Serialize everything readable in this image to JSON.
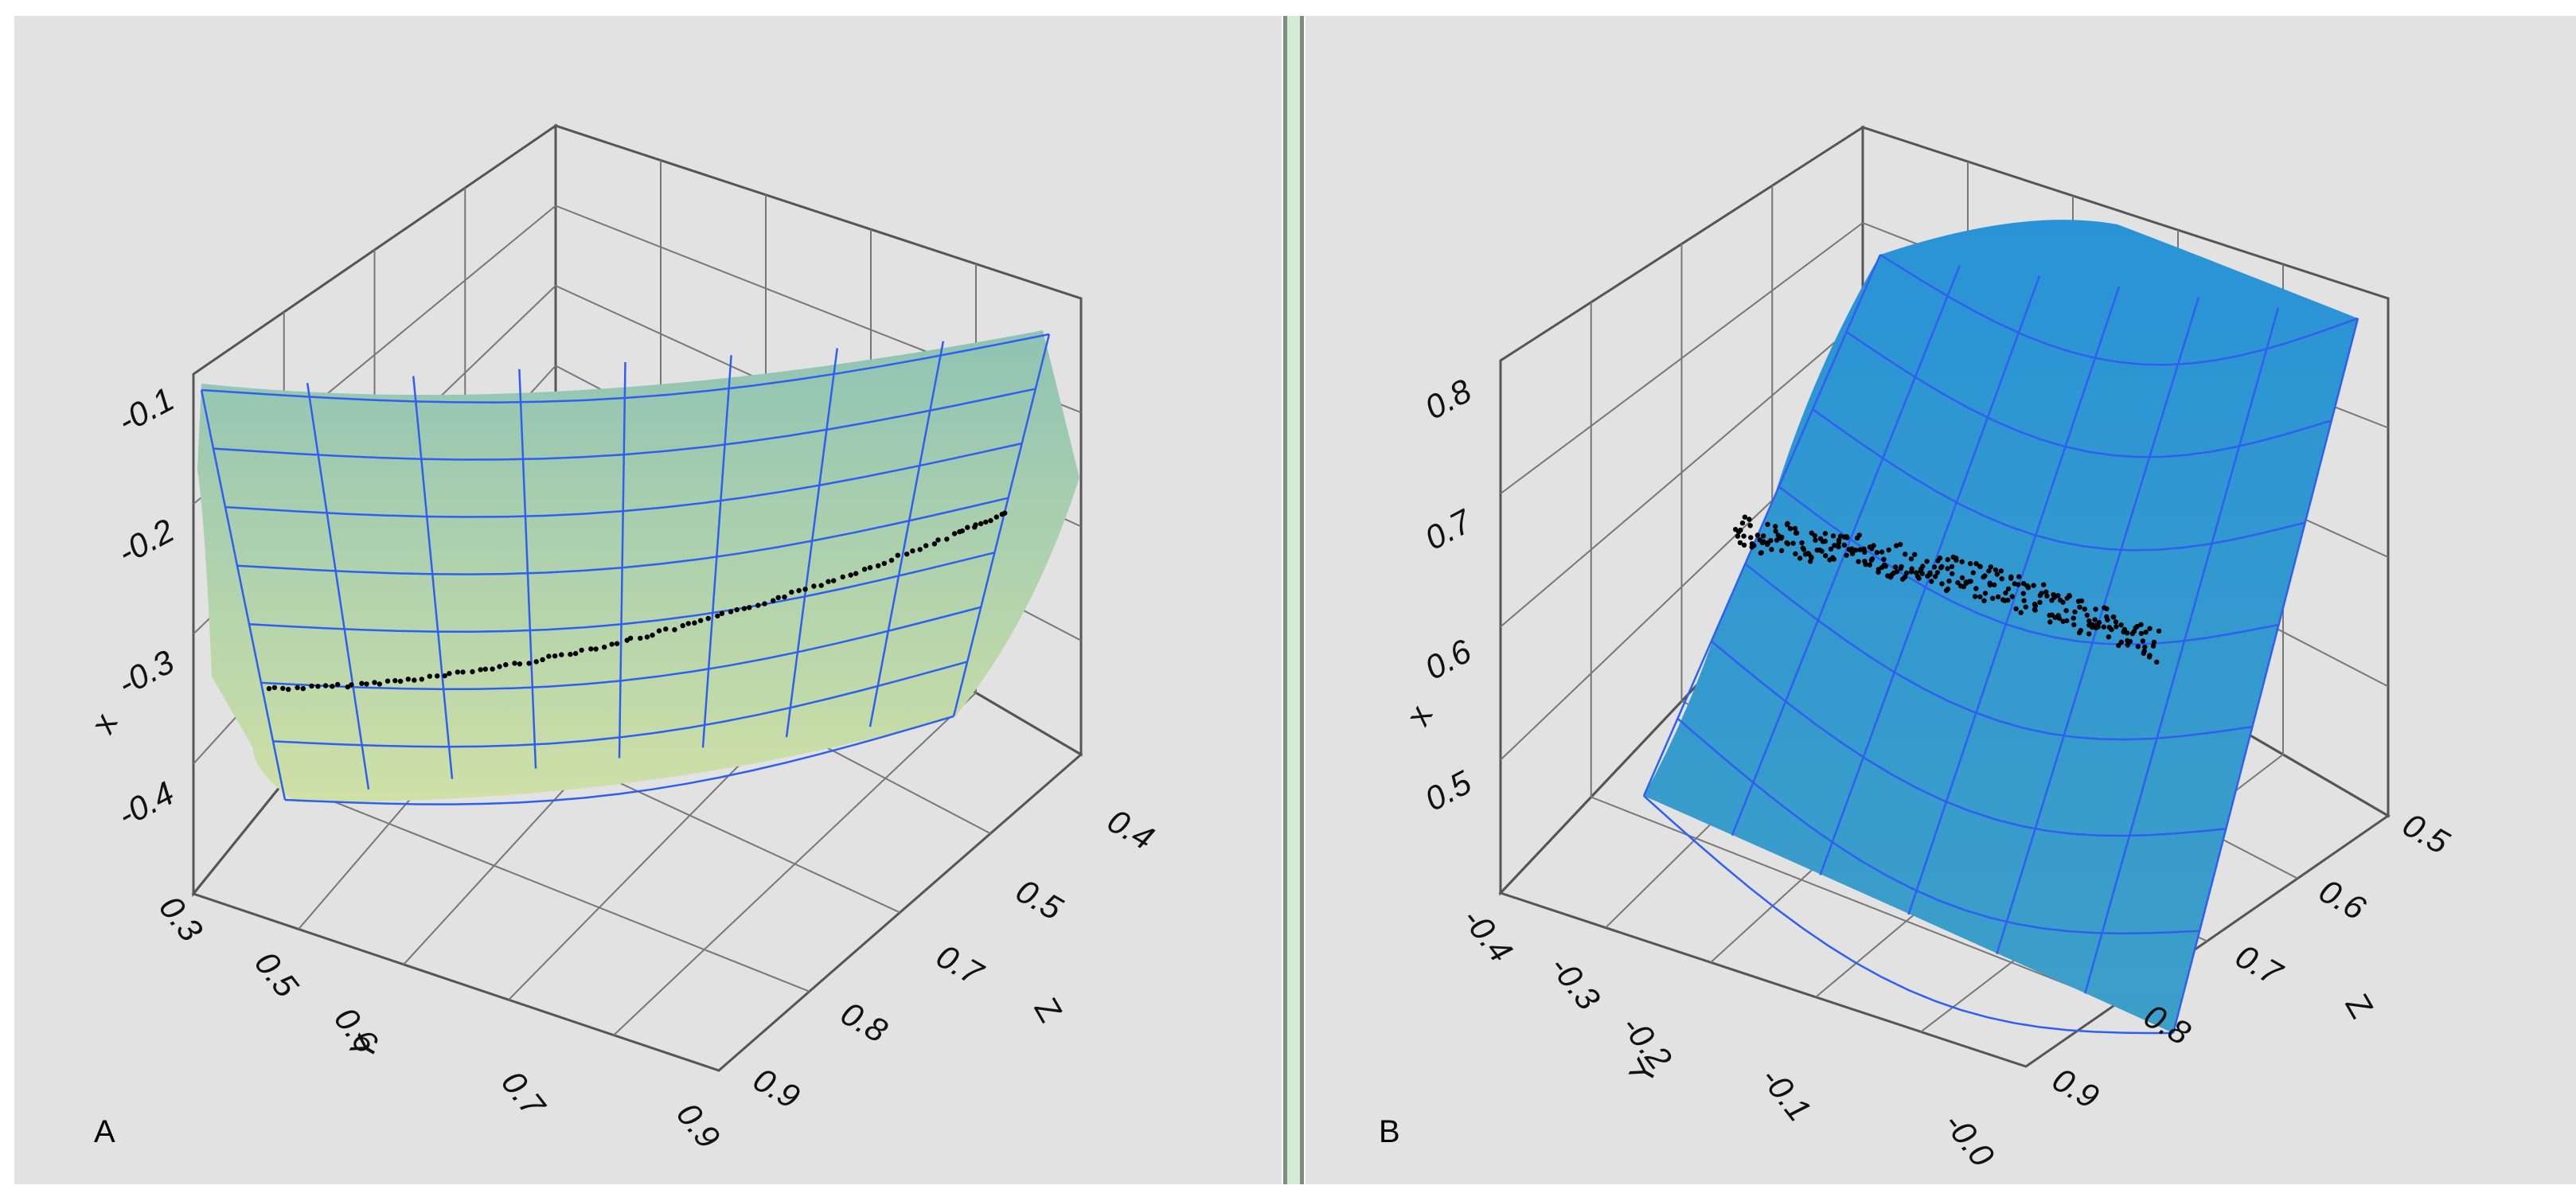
{
  "panels": [
    {
      "label": "A",
      "surface_color": "#8fc3b4",
      "surface_color_low": "#cfe0a6",
      "mesh_color": "#2f5ff0",
      "chart_data": {
        "type": "scatter",
        "title": "",
        "xlabel": "x",
        "ylabel": "Y",
        "zlabel": "Z",
        "x_axis": {
          "label": "x",
          "ticks": [
            "-0.1",
            "-0.2",
            "-0.3",
            "-0.4"
          ],
          "range": [
            -0.45,
            -0.08
          ]
        },
        "y_axis": {
          "label": "Y",
          "ticks": [
            "0.3",
            "0.5",
            "0.6",
            "0.7",
            "0.9"
          ]
        },
        "z_axis": {
          "label": "Z",
          "ticks": [
            "0.4",
            "0.5",
            "0.7",
            "0.8",
            "0.9"
          ]
        },
        "grid": true,
        "points_description": "black points along a curve on fitted surface",
        "series": [
          {
            "values_y": [
              0.32,
              0.38,
              0.44,
              0.5,
              0.56,
              0.62,
              0.68,
              0.74,
              0.8,
              0.86,
              0.9
            ],
            "values_x": [
              -0.32,
              -0.32,
              -0.315,
              -0.31,
              -0.305,
              -0.3,
              -0.29,
              -0.28,
              -0.26,
              -0.24,
              -0.22
            ]
          }
        ]
      }
    },
    {
      "label": "B",
      "surface_color": "#2a93d6",
      "surface_color_low": "#3d9fc8",
      "mesh_color": "#2f5ff0",
      "chart_data": {
        "type": "scatter",
        "title": "",
        "xlabel": "x",
        "ylabel": "Y",
        "zlabel": "Z",
        "x_axis": {
          "label": "x",
          "ticks": [
            "0.8",
            "0.7",
            "0.6",
            "0.5"
          ],
          "range": [
            0.44,
            0.84
          ]
        },
        "y_axis": {
          "label": "Y",
          "ticks": [
            "-0.4",
            "-0.3",
            "-0.2",
            "-0.1",
            "-0.0"
          ]
        },
        "z_axis": {
          "label": "Z",
          "ticks": [
            "0.5",
            "0.6",
            "0.7",
            "0.8",
            "0.9"
          ]
        },
        "grid": true,
        "points_description": "black scattered points in band on fitted surface",
        "series": [
          {
            "values_y": [
              -0.36,
              -0.32,
              -0.28,
              -0.24,
              -0.2,
              -0.16,
              -0.12,
              -0.08,
              -0.04
            ],
            "values_x": [
              0.68,
              0.665,
              0.65,
              0.635,
              0.625,
              0.615,
              0.61,
              0.6,
              0.595
            ]
          }
        ]
      }
    }
  ]
}
